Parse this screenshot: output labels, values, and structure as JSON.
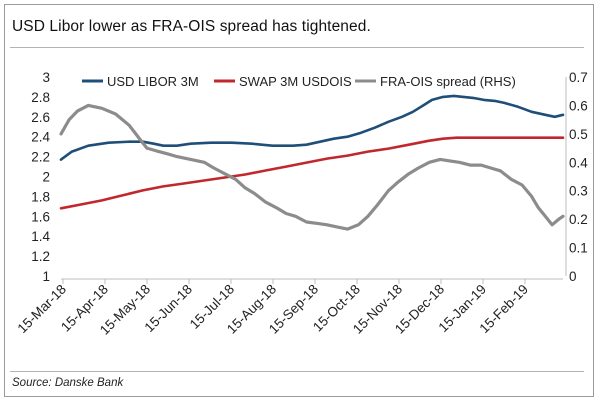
{
  "title": "USD Libor lower as FRA-OIS spread has tightened.",
  "source": "Source: Danske Bank",
  "chart_data": {
    "type": "line",
    "ylim": [
      1,
      3
    ],
    "y2lim": [
      0,
      0.7
    ],
    "yticks": [
      "3",
      "2.8",
      "2.6",
      "2.4",
      "2.2",
      "2",
      "1.8",
      "1.6",
      "1.4",
      "1.2",
      "1"
    ],
    "y2ticks": [
      "0.7",
      "0.6",
      "0.5",
      "0.4",
      "0.3",
      "0.2",
      "0.1",
      "0"
    ],
    "xticks": [
      "15-Mar-18",
      "15-Apr-18",
      "15-May-18",
      "15-Jun-18",
      "15-Jul-18",
      "15-Aug-18",
      "15-Sep-18",
      "15-Oct-18",
      "15-Nov-18",
      "15-Dec-18",
      "15-Jan-19",
      "15-Feb-19"
    ],
    "x_day_range": [
      0,
      368
    ],
    "xlabel": "",
    "ylabel": "",
    "y2label": "",
    "grid": false,
    "legend_position": "top",
    "series": [
      {
        "name": "USD LIBOR 3M",
        "axis": "left",
        "color": "#1f4e79",
        "points": [
          [
            0,
            2.17
          ],
          [
            8,
            2.25
          ],
          [
            20,
            2.31
          ],
          [
            35,
            2.34
          ],
          [
            50,
            2.35
          ],
          [
            60,
            2.35
          ],
          [
            68,
            2.33
          ],
          [
            75,
            2.31
          ],
          [
            85,
            2.31
          ],
          [
            95,
            2.33
          ],
          [
            110,
            2.34
          ],
          [
            125,
            2.34
          ],
          [
            140,
            2.33
          ],
          [
            155,
            2.31
          ],
          [
            170,
            2.31
          ],
          [
            180,
            2.32
          ],
          [
            190,
            2.35
          ],
          [
            200,
            2.38
          ],
          [
            210,
            2.4
          ],
          [
            220,
            2.44
          ],
          [
            230,
            2.49
          ],
          [
            240,
            2.55
          ],
          [
            250,
            2.6
          ],
          [
            258,
            2.65
          ],
          [
            265,
            2.71
          ],
          [
            272,
            2.77
          ],
          [
            280,
            2.8
          ],
          [
            288,
            2.81
          ],
          [
            295,
            2.8
          ],
          [
            302,
            2.79
          ],
          [
            310,
            2.77
          ],
          [
            318,
            2.76
          ],
          [
            325,
            2.74
          ],
          [
            335,
            2.7
          ],
          [
            345,
            2.65
          ],
          [
            355,
            2.62
          ],
          [
            362,
            2.6
          ],
          [
            368,
            2.62
          ]
        ]
      },
      {
        "name": "SWAP 3M USDOIS",
        "axis": "left",
        "color": "#c0282d",
        "points": [
          [
            0,
            1.68
          ],
          [
            15,
            1.72
          ],
          [
            30,
            1.76
          ],
          [
            45,
            1.81
          ],
          [
            60,
            1.86
          ],
          [
            75,
            1.9
          ],
          [
            90,
            1.93
          ],
          [
            105,
            1.96
          ],
          [
            120,
            1.99
          ],
          [
            135,
            2.02
          ],
          [
            150,
            2.06
          ],
          [
            165,
            2.1
          ],
          [
            180,
            2.14
          ],
          [
            195,
            2.18
          ],
          [
            210,
            2.21
          ],
          [
            225,
            2.25
          ],
          [
            240,
            2.28
          ],
          [
            255,
            2.32
          ],
          [
            270,
            2.36
          ],
          [
            280,
            2.38
          ],
          [
            290,
            2.39
          ],
          [
            305,
            2.39
          ],
          [
            320,
            2.39
          ],
          [
            335,
            2.39
          ],
          [
            350,
            2.39
          ],
          [
            368,
            2.39
          ]
        ]
      },
      {
        "name": "FRA-OIS spread (RHS)",
        "axis": "right",
        "color": "#8c8c8c",
        "points": [
          [
            0,
            0.5
          ],
          [
            6,
            0.55
          ],
          [
            12,
            0.58
          ],
          [
            20,
            0.6
          ],
          [
            30,
            0.59
          ],
          [
            40,
            0.57
          ],
          [
            50,
            0.53
          ],
          [
            58,
            0.48
          ],
          [
            63,
            0.45
          ],
          [
            70,
            0.44
          ],
          [
            78,
            0.43
          ],
          [
            85,
            0.42
          ],
          [
            95,
            0.41
          ],
          [
            105,
            0.4
          ],
          [
            112,
            0.38
          ],
          [
            120,
            0.36
          ],
          [
            128,
            0.34
          ],
          [
            135,
            0.31
          ],
          [
            142,
            0.29
          ],
          [
            150,
            0.26
          ],
          [
            158,
            0.24
          ],
          [
            165,
            0.22
          ],
          [
            172,
            0.21
          ],
          [
            180,
            0.19
          ],
          [
            188,
            0.185
          ],
          [
            195,
            0.18
          ],
          [
            205,
            0.17
          ],
          [
            210,
            0.165
          ],
          [
            218,
            0.18
          ],
          [
            225,
            0.21
          ],
          [
            232,
            0.25
          ],
          [
            240,
            0.3
          ],
          [
            247,
            0.33
          ],
          [
            255,
            0.36
          ],
          [
            262,
            0.38
          ],
          [
            270,
            0.4
          ],
          [
            278,
            0.41
          ],
          [
            285,
            0.405
          ],
          [
            292,
            0.4
          ],
          [
            300,
            0.39
          ],
          [
            308,
            0.39
          ],
          [
            315,
            0.38
          ],
          [
            322,
            0.37
          ],
          [
            330,
            0.34
          ],
          [
            338,
            0.32
          ],
          [
            345,
            0.28
          ],
          [
            350,
            0.24
          ],
          [
            355,
            0.21
          ],
          [
            360,
            0.18
          ],
          [
            365,
            0.2
          ],
          [
            368,
            0.21
          ]
        ]
      }
    ]
  }
}
